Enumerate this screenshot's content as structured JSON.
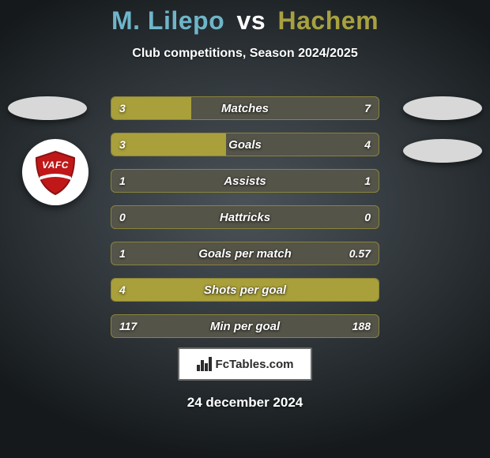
{
  "title": {
    "player1": "M. Lilepo",
    "vs": "vs",
    "player2": "Hachem",
    "player1_color": "#6fb5c9",
    "player2_color": "#a8a13f",
    "fontsize": 32
  },
  "subtitle": "Club competitions, Season 2024/2025",
  "bars": {
    "fill_color": "#a9a03b",
    "track_color": "#545449",
    "border_color": "#8a8438",
    "label_color": "#ffffff",
    "value_color": "#ffffff",
    "label_fontsize": 15,
    "value_fontsize": 14,
    "rows": [
      {
        "label": "Matches",
        "left_val": "3",
        "right_val": "7",
        "left_pct": 30,
        "right_pct": 0
      },
      {
        "label": "Goals",
        "left_val": "3",
        "right_val": "4",
        "left_pct": 43,
        "right_pct": 0
      },
      {
        "label": "Assists",
        "left_val": "1",
        "right_val": "1",
        "left_pct": 0,
        "right_pct": 0
      },
      {
        "label": "Hattricks",
        "left_val": "0",
        "right_val": "0",
        "left_pct": 0,
        "right_pct": 0
      },
      {
        "label": "Goals per match",
        "left_val": "1",
        "right_val": "0.57",
        "left_pct": 0,
        "right_pct": 0
      },
      {
        "label": "Shots per goal",
        "left_val": "4",
        "right_val": "",
        "left_pct": 100,
        "right_pct": 0
      },
      {
        "label": "Min per goal",
        "left_val": "117",
        "right_val": "188",
        "left_pct": 0,
        "right_pct": 0
      }
    ]
  },
  "badge": {
    "text": "VAFC",
    "shield_fill": "#c01818",
    "shield_stroke": "#8a1212",
    "accent": "#ffffff"
  },
  "ovals": {
    "color": "#d8d8d8"
  },
  "footer": {
    "brand": "FcTables.com",
    "date": "24 december 2024"
  },
  "background": {
    "center_color": "#4a5258",
    "edge_color": "#15191c"
  }
}
